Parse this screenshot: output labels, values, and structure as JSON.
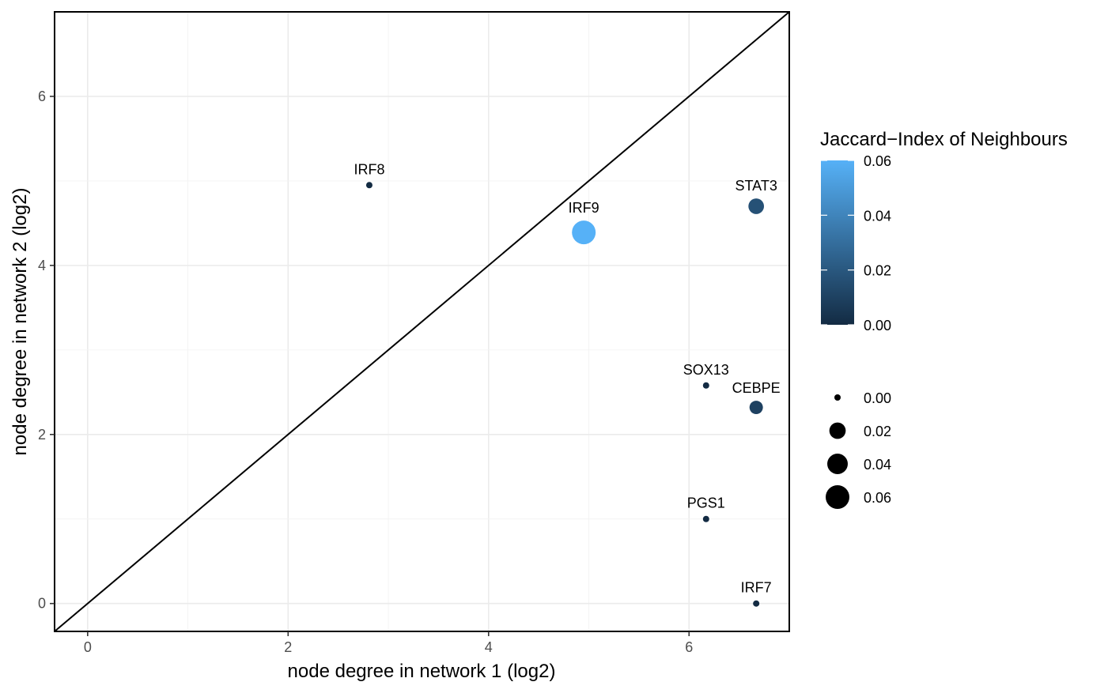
{
  "chart_data": {
    "type": "scatter",
    "xlabel": "node degree in network 1 (log2)",
    "ylabel": "node degree in network 2 (log2)",
    "xlim": [
      -0.33,
      7.0
    ],
    "ylim": [
      -0.33,
      7.0
    ],
    "xticks": [
      0,
      2,
      4,
      6
    ],
    "yticks": [
      0,
      2,
      4,
      6
    ],
    "xtick_labels": [
      "0",
      "2",
      "4",
      "6"
    ],
    "ytick_labels": [
      "0",
      "2",
      "4",
      "6"
    ],
    "grid": true,
    "reference_line": "y = x",
    "points": [
      {
        "label": "IRF8",
        "x": 2.81,
        "y": 4.95,
        "jaccard": 0.0
      },
      {
        "label": "IRF9",
        "x": 4.95,
        "y": 4.39,
        "jaccard": 0.06
      },
      {
        "label": "STAT3",
        "x": 6.67,
        "y": 4.7,
        "jaccard": 0.017
      },
      {
        "label": "SOX13",
        "x": 6.17,
        "y": 2.58,
        "jaccard": 0.0
      },
      {
        "label": "CEBPE",
        "x": 6.67,
        "y": 2.32,
        "jaccard": 0.01
      },
      {
        "label": "PGS1",
        "x": 6.17,
        "y": 1.0,
        "jaccard": 0.0
      },
      {
        "label": "IRF7",
        "x": 6.67,
        "y": 0.0,
        "jaccard": 0.0
      }
    ],
    "color_legend": {
      "title": "Jaccard−Index of Neighbours",
      "min": 0.0,
      "max": 0.06,
      "low_color": "#132B43",
      "high_color": "#56B1F7",
      "ticks": [
        0.0,
        0.02,
        0.04,
        0.06
      ],
      "tick_labels": [
        "0.00",
        "0.02",
        "0.04",
        "0.06"
      ]
    },
    "size_legend": {
      "values": [
        0.0,
        0.02,
        0.04,
        0.06
      ],
      "labels": [
        "0.00",
        "0.02",
        "0.04",
        "0.06"
      ]
    }
  }
}
